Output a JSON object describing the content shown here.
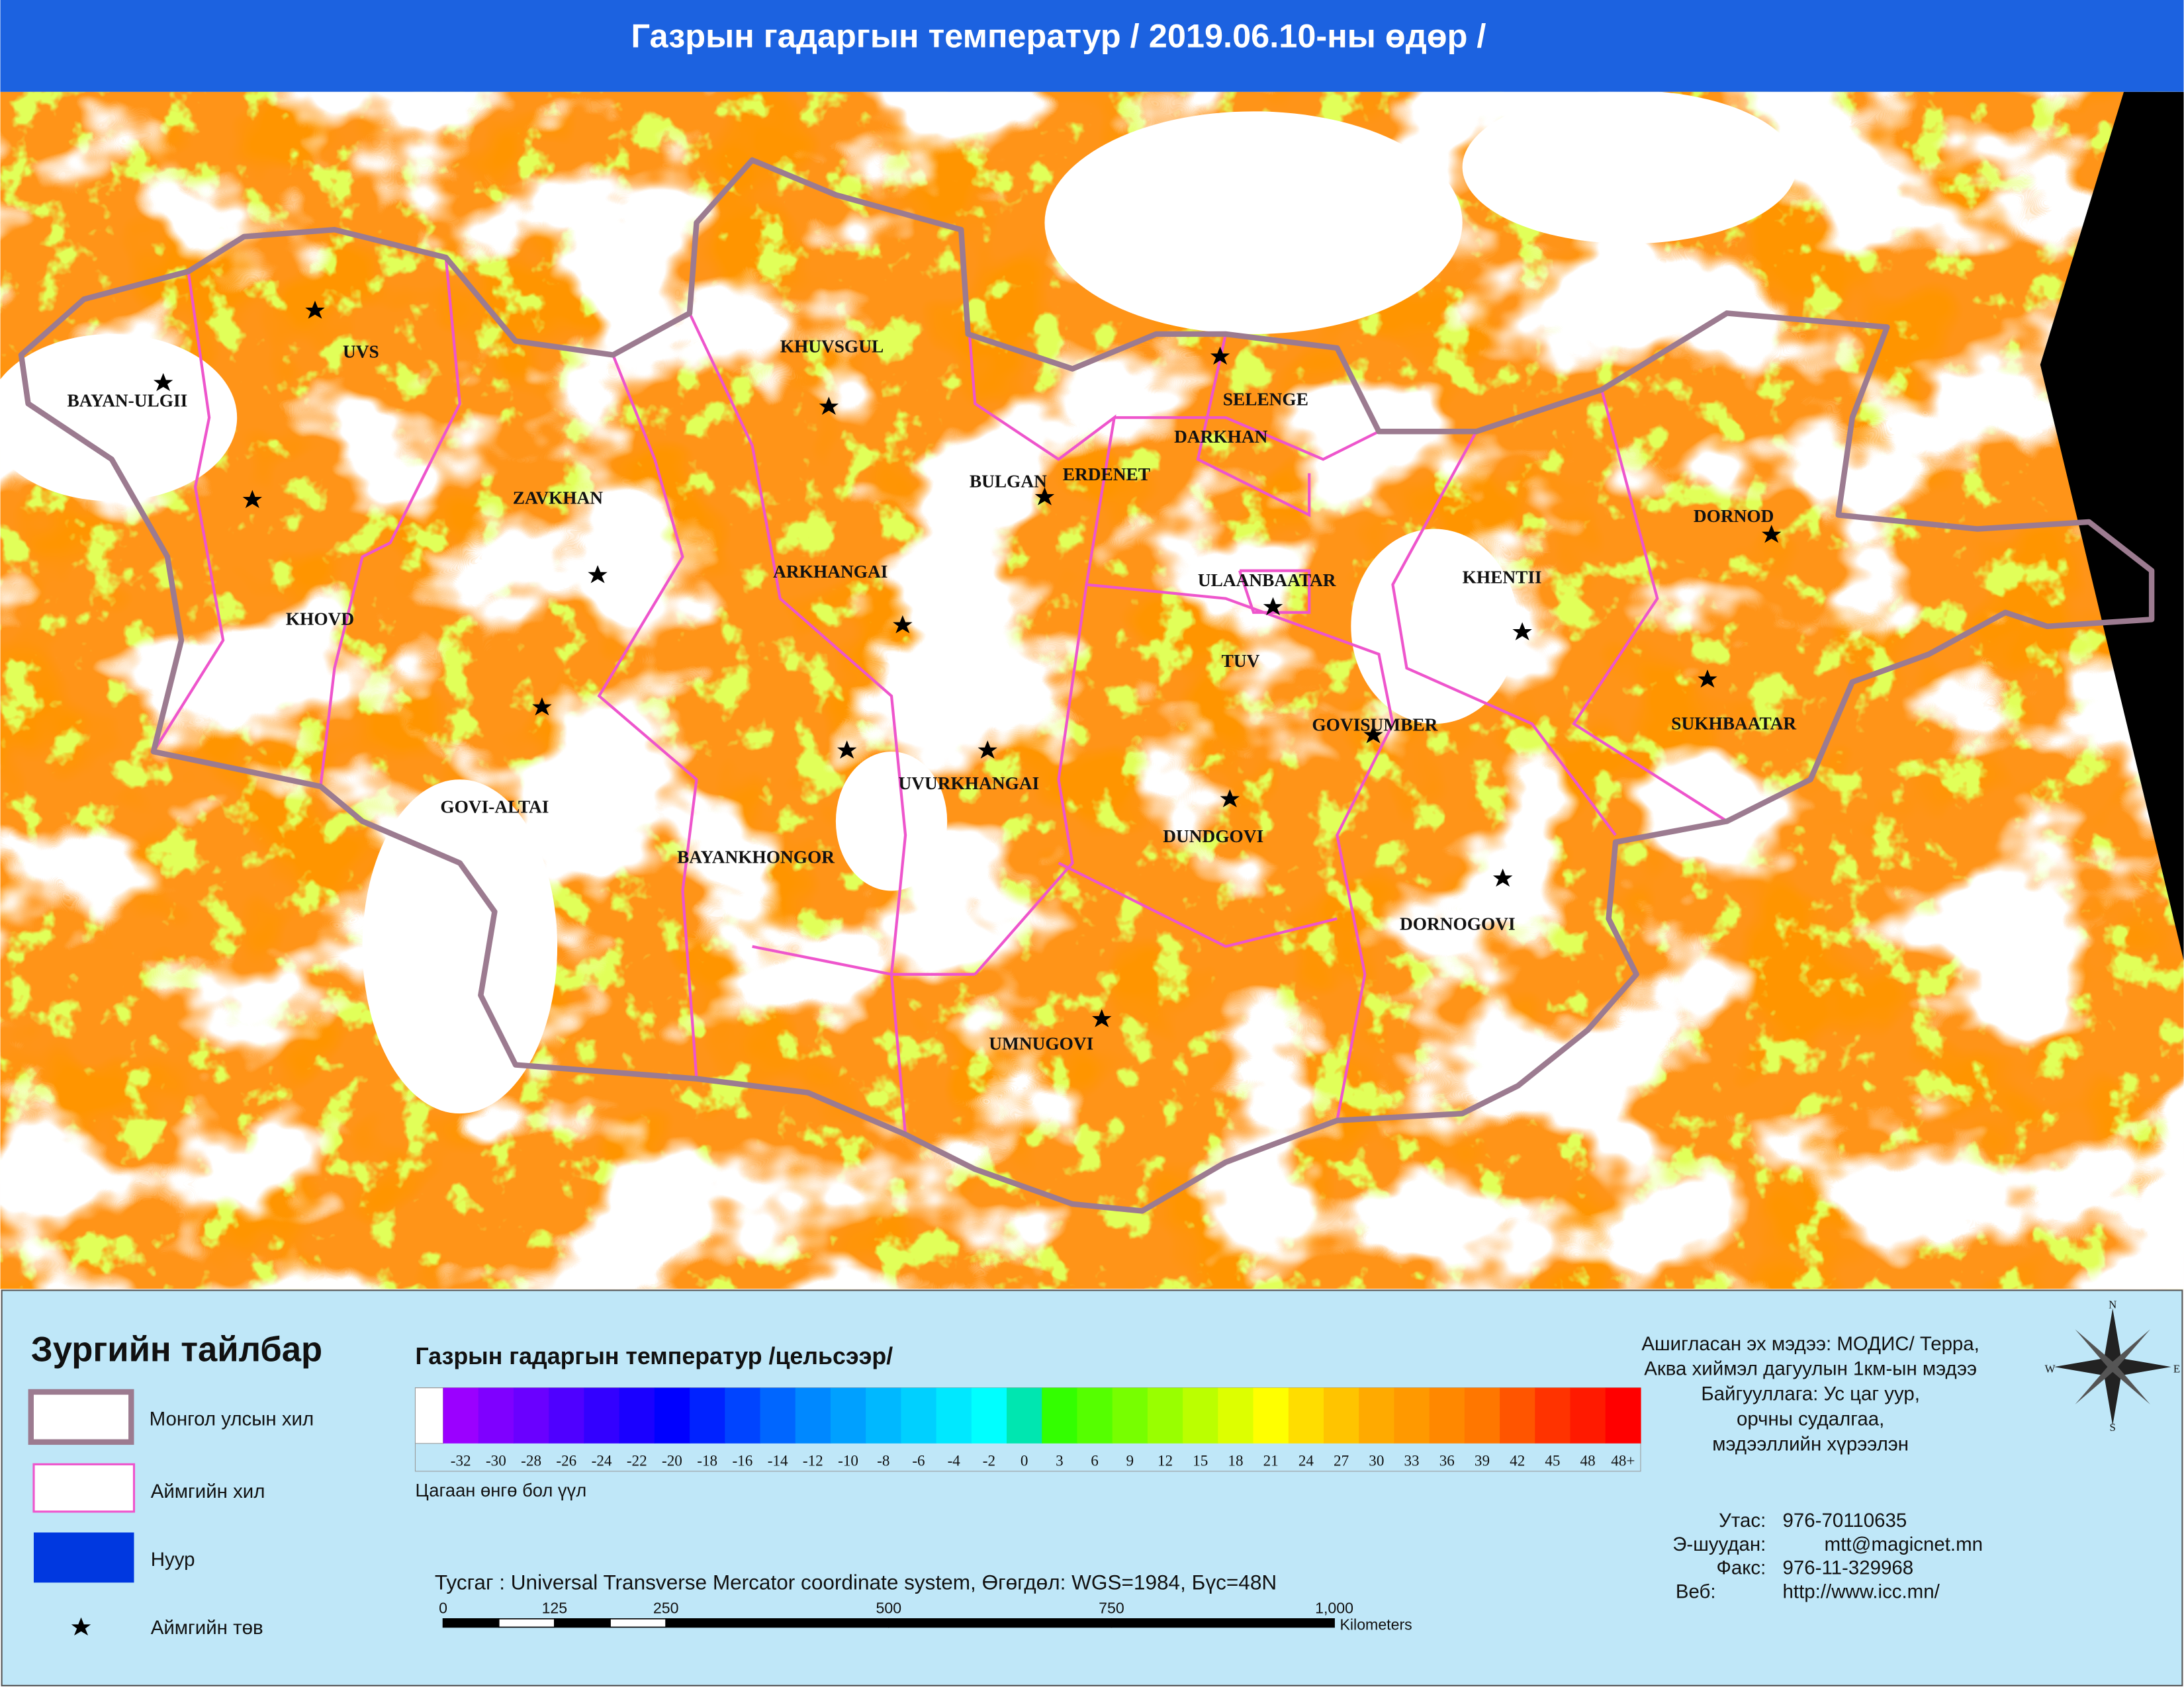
{
  "header": {
    "title": "Газрын гадаргын температур / 2019.06.10-ны өдөр /"
  },
  "map": {
    "provinces": [
      "UVS",
      "BAYAN-ULGII",
      "KHOVD",
      "ZAVKHAN",
      "GOVI-ALTAI",
      "KHUVSGUL",
      "ARKHANGAI",
      "BULGAN",
      "ERDENET",
      "SELENGE",
      "DARKHAN",
      "ULAANBAATAR",
      "TUV",
      "KHENTII",
      "DORNOD",
      "SUKHBAATAR",
      "GOVISUMBER",
      "DUNDGOVI",
      "DORNOGOVI",
      "UVURKHANGAI",
      "BAYANKHONGOR",
      "UMNUGOVI"
    ]
  },
  "legend": {
    "title": "Зургийн тайлбар",
    "items": [
      "Монгол улсын хил",
      "Аймгийн хил",
      "Нуур",
      "Аймгийн төв"
    ]
  },
  "colorbar": {
    "title": "Газрын гадаргын температур /цельсээр/",
    "labels": [
      "-32",
      "-30",
      "-28",
      "-26",
      "-24",
      "-22",
      "-20",
      "-18",
      "-16",
      "-14",
      "-12",
      "-10",
      "-8",
      "-6",
      "-4",
      "-2",
      "0",
      "3",
      "6",
      "9",
      "12",
      "15",
      "18",
      "21",
      "24",
      "27",
      "30",
      "33",
      "36",
      "39",
      "42",
      "45",
      "48",
      "48+"
    ],
    "colors": [
      "#9b00ff",
      "#7f00ff",
      "#6a00ff",
      "#4f00ff",
      "#3300ff",
      "#1a00ff",
      "#0000ff",
      "#0022ff",
      "#0044ff",
      "#0066ff",
      "#0088ff",
      "#00a0ff",
      "#00b8ff",
      "#00d0ff",
      "#00e8ff",
      "#00ffff",
      "#00e6b0",
      "#33ff00",
      "#55ff00",
      "#77ff00",
      "#99ff00",
      "#bbff00",
      "#ddff00",
      "#ffff00",
      "#ffdd00",
      "#ffc400",
      "#ffaa00",
      "#ff9900",
      "#ff8800",
      "#ff7700",
      "#ff5500",
      "#ff3300",
      "#ff1a00",
      "#ff0000"
    ],
    "note": "Цагаан өнгө бол үүл"
  },
  "projection": "Тусгаг : Universal Transverse Mercator coordinate system, Өгөгдөл: WGS=1984, Бүс=48N",
  "scale_bar": {
    "labels": [
      "0",
      "125",
      "250",
      "500",
      "750",
      "1,000"
    ],
    "unit": "Kilometers"
  },
  "source": [
    "Ашигласан эх мэдээ: МОДИС/ Терра,",
    "Аква хиймэл дагуулын 1км-ын мэдээ",
    "Байгууллага: Ус цаг уур,",
    "орчны судалгаа,",
    "мэдээллийн хүрээлэн"
  ],
  "contacts": [
    [
      "Утас:",
      "976-70110635"
    ],
    [
      "Э-шуудан:",
      "mtt@magicnet.mn"
    ],
    [
      "Факс:",
      "976-11-329968"
    ],
    [
      "Веб:",
      "http://www.icc.mn/"
    ]
  ],
  "compass": [
    "N",
    "E",
    "S",
    "W"
  ]
}
